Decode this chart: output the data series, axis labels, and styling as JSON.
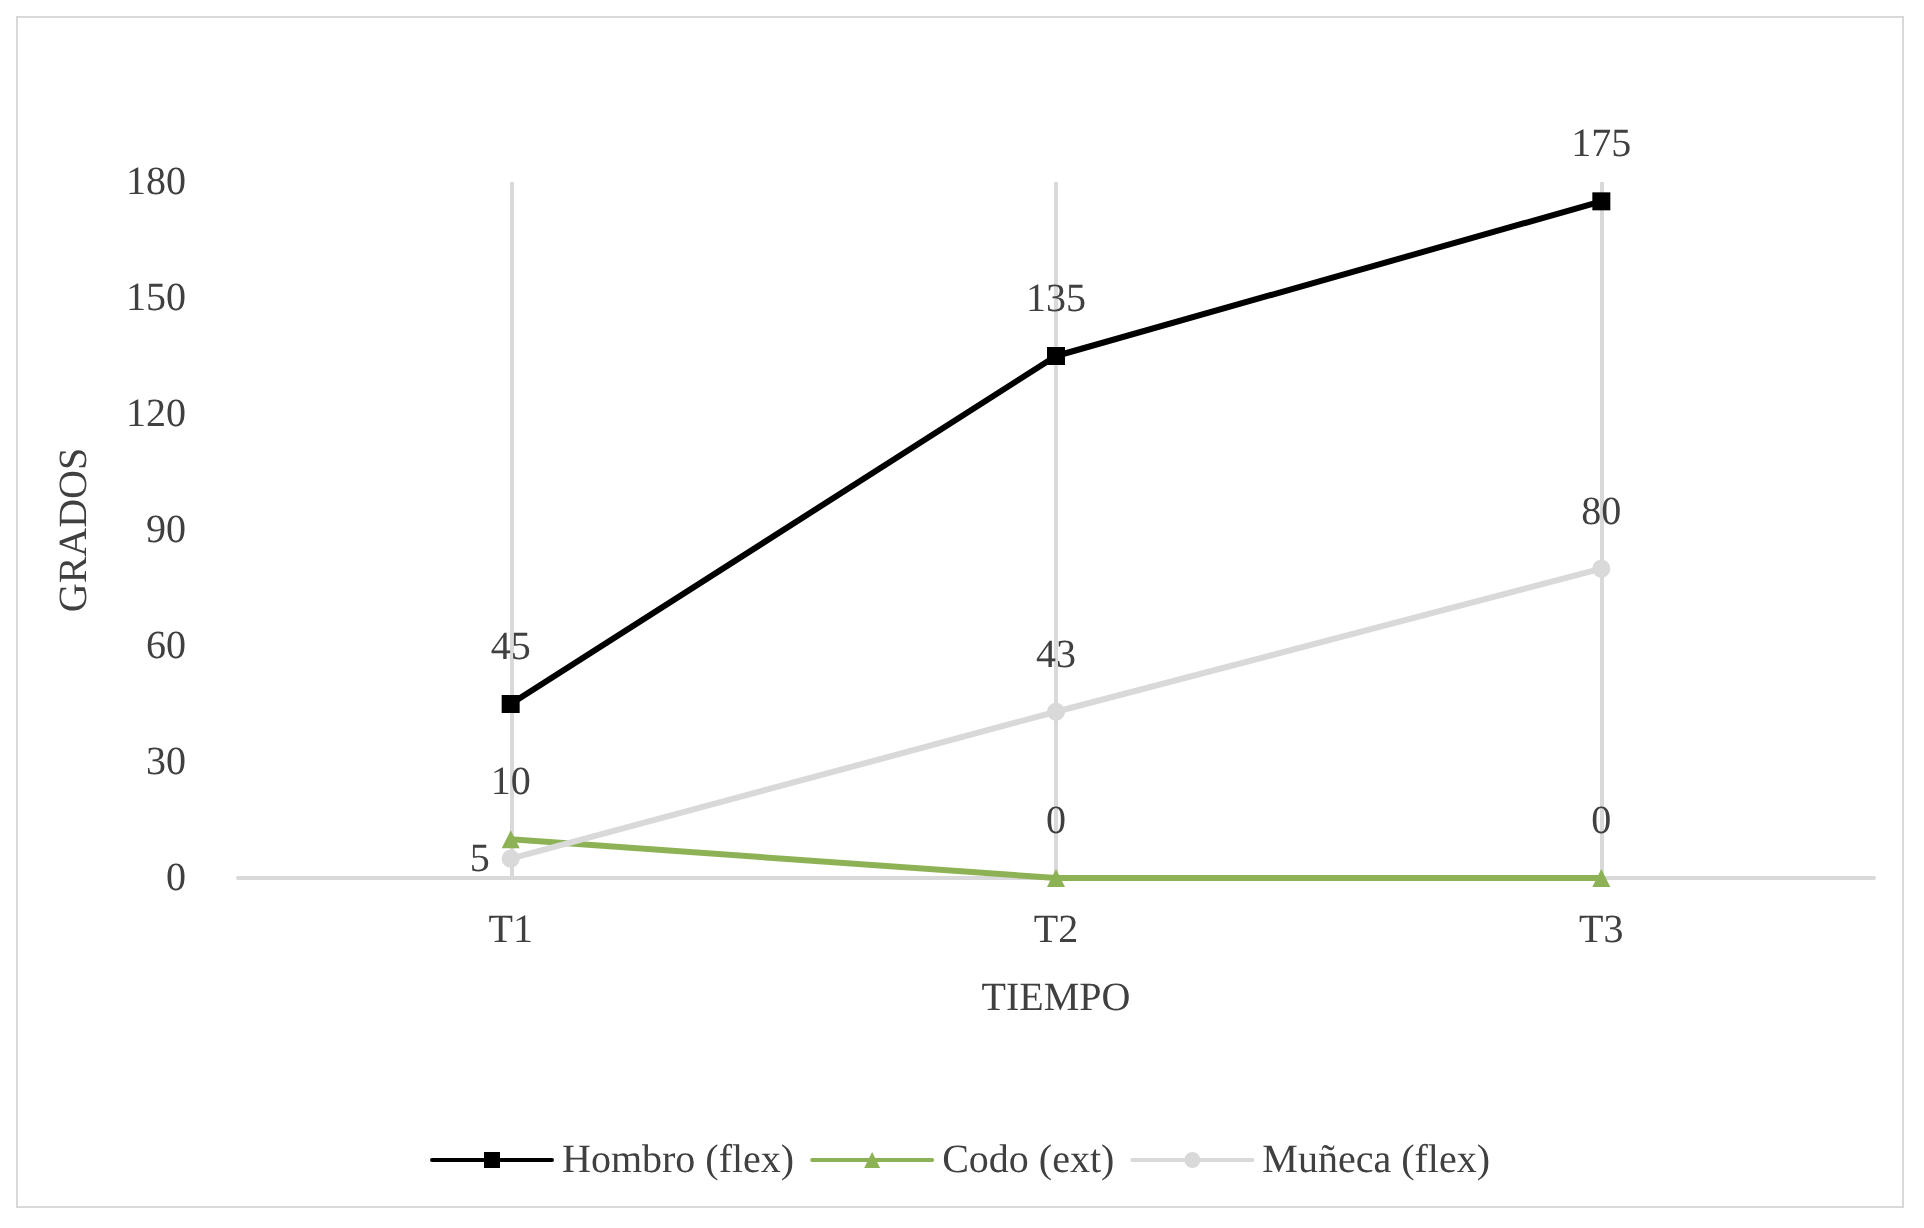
{
  "chart_data": {
    "type": "line",
    "xlabel": "TIEMPO",
    "ylabel": "GRADOS",
    "categories": [
      "T1",
      "T2",
      "T3"
    ],
    "series": [
      {
        "name": "Hombro (flex)",
        "color": "#000000",
        "marker": "square",
        "values": [
          45,
          135,
          175
        ]
      },
      {
        "name": "Codo (ext)",
        "color": "#8db255",
        "marker": "triangle",
        "values": [
          10,
          0,
          0
        ]
      },
      {
        "name": "Muñeca (flex)",
        "color": "#d9d9d9",
        "marker": "circle",
        "values": [
          5,
          43,
          80
        ]
      }
    ],
    "ylim": [
      0,
      180
    ],
    "yticks": [
      0,
      30,
      60,
      90,
      120,
      150,
      180
    ],
    "grid": "x",
    "legend": "bottom",
    "data_labels": true
  }
}
